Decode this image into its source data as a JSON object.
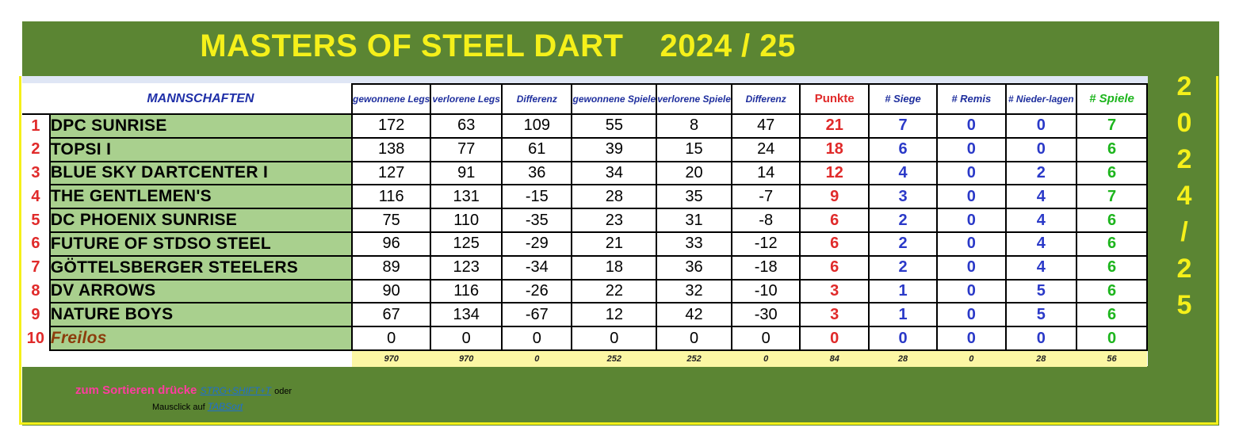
{
  "title": {
    "left": "MASTERS OF STEEL DART",
    "right": "2024 / 25"
  },
  "side_year": [
    "2",
    "0",
    "2",
    "4",
    "/",
    "2",
    "5"
  ],
  "headers": {
    "team": "MANNSCHAFTEN",
    "legs_won": "gewonnene Legs",
    "legs_lost": "verlorene Legs",
    "legs_diff": "Differenz",
    "games_won": "gewonnene Spiele",
    "games_lost": "verlorene Spiele",
    "games_diff": "Differenz",
    "points": "Punkte",
    "wins": "# Siege",
    "draws": "# Remis",
    "losses": "# Nieder-lagen",
    "played": "# Spiele"
  },
  "rows": [
    {
      "rank": "1",
      "team": "DPC SUNRISE",
      "legs_won": "172",
      "legs_lost": "63",
      "legs_diff": "109",
      "games_won": "55",
      "games_lost": "8",
      "games_diff": "47",
      "points": "21",
      "wins": "7",
      "draws": "0",
      "losses": "0",
      "played": "7"
    },
    {
      "rank": "2",
      "team": "TOPSI I",
      "legs_won": "138",
      "legs_lost": "77",
      "legs_diff": "61",
      "games_won": "39",
      "games_lost": "15",
      "games_diff": "24",
      "points": "18",
      "wins": "6",
      "draws": "0",
      "losses": "0",
      "played": "6"
    },
    {
      "rank": "3",
      "team": "BLUE SKY DARTCENTER I",
      "legs_won": "127",
      "legs_lost": "91",
      "legs_diff": "36",
      "games_won": "34",
      "games_lost": "20",
      "games_diff": "14",
      "points": "12",
      "wins": "4",
      "draws": "0",
      "losses": "2",
      "played": "6"
    },
    {
      "rank": "4",
      "team": "THE GENTLEMEN'S",
      "legs_won": "116",
      "legs_lost": "131",
      "legs_diff": "-15",
      "games_won": "28",
      "games_lost": "35",
      "games_diff": "-7",
      "points": "9",
      "wins": "3",
      "draws": "0",
      "losses": "4",
      "played": "7"
    },
    {
      "rank": "5",
      "team": "DC PHOENIX SUNRISE",
      "legs_won": "75",
      "legs_lost": "110",
      "legs_diff": "-35",
      "games_won": "23",
      "games_lost": "31",
      "games_diff": "-8",
      "points": "6",
      "wins": "2",
      "draws": "0",
      "losses": "4",
      "played": "6"
    },
    {
      "rank": "6",
      "team": "FUTURE OF STDSO STEEL",
      "legs_won": "96",
      "legs_lost": "125",
      "legs_diff": "-29",
      "games_won": "21",
      "games_lost": "33",
      "games_diff": "-12",
      "points": "6",
      "wins": "2",
      "draws": "0",
      "losses": "4",
      "played": "6"
    },
    {
      "rank": "7",
      "team": "GÖTTELSBERGER STEELERS",
      "legs_won": "89",
      "legs_lost": "123",
      "legs_diff": "-34",
      "games_won": "18",
      "games_lost": "36",
      "games_diff": "-18",
      "points": "6",
      "wins": "2",
      "draws": "0",
      "losses": "4",
      "played": "6"
    },
    {
      "rank": "8",
      "team": "DV ARROWS",
      "legs_won": "90",
      "legs_lost": "116",
      "legs_diff": "-26",
      "games_won": "22",
      "games_lost": "32",
      "games_diff": "-10",
      "points": "3",
      "wins": "1",
      "draws": "0",
      "losses": "5",
      "played": "6"
    },
    {
      "rank": "9",
      "team": "NATURE BOYS",
      "legs_won": "67",
      "legs_lost": "134",
      "legs_diff": "-67",
      "games_won": "12",
      "games_lost": "42",
      "games_diff": "-30",
      "points": "3",
      "wins": "1",
      "draws": "0",
      "losses": "5",
      "played": "6"
    },
    {
      "rank": "10",
      "team": "Freilos",
      "legs_won": "0",
      "legs_lost": "0",
      "legs_diff": "0",
      "games_won": "0",
      "games_lost": "0",
      "games_diff": "0",
      "points": "0",
      "wins": "0",
      "draws": "0",
      "losses": "0",
      "played": "0"
    }
  ],
  "totals": {
    "legs_won": "970",
    "legs_lost": "970",
    "legs_diff": "0",
    "games_won": "252",
    "games_lost": "252",
    "games_diff": "0",
    "points": "84",
    "wins": "28",
    "draws": "0",
    "losses": "28",
    "played": "56"
  },
  "hint": {
    "sort_prefix": "zum Sortieren drücke",
    "shortcut": "STRG+SHIFT+T",
    "suffix": "oder",
    "mouse_prefix": "Mausclick auf",
    "mouse_link": "TABSort"
  },
  "colors": {
    "background_green": "#5b8533",
    "title_yellow": "#f5f01a",
    "team_cell_green": "#a9d08e",
    "points_red": "#e02a2a",
    "stats_blue": "#2a39c8",
    "games_green": "#1db51d",
    "totals_yellow": "#fcf7a4"
  }
}
